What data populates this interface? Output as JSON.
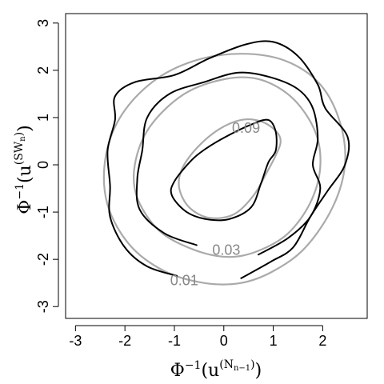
{
  "chart_data": {
    "type": "contour",
    "title": "",
    "xlabel": {
      "base": "Φ",
      "exp": "−1",
      "open": "(u",
      "sup_main": "(N",
      "sub": "n−1",
      "sup_close": ")",
      "close": ")"
    },
    "ylabel": {
      "base": "Φ",
      "exp": "−1",
      "open": "(u",
      "sup_main": "(SW",
      "sub": "n",
      "sup_close": ")",
      "close": ")"
    },
    "xlim": [
      -3.2,
      2.9
    ],
    "ylim": [
      -3.25,
      3.2
    ],
    "x_ticks": [
      -3,
      -2,
      -1,
      0,
      1,
      2
    ],
    "x_tick_labels": [
      "-3",
      "-2",
      "-1",
      "0",
      "1",
      "2"
    ],
    "y_ticks": [
      -3,
      -2,
      -1,
      0,
      1,
      2,
      3
    ],
    "y_tick_labels": [
      "-3",
      "-2",
      "-1",
      "0",
      "1",
      "2",
      "3"
    ],
    "grid": false,
    "colors": {
      "empirical": "#000000",
      "model": "#aaaaaa",
      "label": "#888888",
      "frame": "#000000"
    },
    "series": [
      {
        "group": "empirical",
        "level": 0.09,
        "points": [
          [
            1.05,
            0.7
          ],
          [
            0.9,
            0.95
          ],
          [
            0.55,
            0.85
          ],
          [
            0.05,
            0.6
          ],
          [
            -0.35,
            0.35
          ],
          [
            -0.65,
            0.1
          ],
          [
            -1.0,
            -0.35
          ],
          [
            -1.05,
            -0.65
          ],
          [
            -0.75,
            -1.0
          ],
          [
            -0.35,
            -1.15
          ],
          [
            0.1,
            -1.15
          ],
          [
            0.55,
            -0.9
          ],
          [
            0.75,
            -0.4
          ],
          [
            0.9,
            0.05
          ],
          [
            1.05,
            0.3
          ],
          [
            1.05,
            0.7
          ]
        ]
      },
      {
        "group": "empirical",
        "level": 0.03,
        "label_at": [
          0.05,
          -1.8
        ],
        "points": [
          [
            -0.55,
            -1.7
          ],
          [
            -1.2,
            -1.45
          ],
          [
            -1.7,
            -0.95
          ],
          [
            -1.75,
            -0.3
          ],
          [
            -1.65,
            0.3
          ],
          [
            -1.55,
            1.0
          ],
          [
            -1.1,
            1.5
          ],
          [
            -0.4,
            1.75
          ],
          [
            0.3,
            1.95
          ],
          [
            0.95,
            1.85
          ],
          [
            1.5,
            1.6
          ],
          [
            1.8,
            1.2
          ],
          [
            1.9,
            0.55
          ],
          [
            1.8,
            0.0
          ],
          [
            1.95,
            -0.5
          ],
          [
            1.75,
            -1.1
          ],
          [
            1.3,
            -1.55
          ],
          [
            0.7,
            -1.9
          ]
        ]
      },
      {
        "group": "empirical",
        "level": 0.01,
        "label_at": [
          -0.8,
          -2.45
        ],
        "points": [
          [
            -0.95,
            -2.35
          ],
          [
            -1.55,
            -2.15
          ],
          [
            -2.0,
            -1.75
          ],
          [
            -2.3,
            -1.1
          ],
          [
            -2.3,
            -0.45
          ],
          [
            -2.35,
            0.3
          ],
          [
            -2.2,
            0.95
          ],
          [
            -2.2,
            1.45
          ],
          [
            -1.8,
            1.75
          ],
          [
            -1.0,
            1.9
          ],
          [
            -0.3,
            2.25
          ],
          [
            0.45,
            2.55
          ],
          [
            1.0,
            2.6
          ],
          [
            1.5,
            2.3
          ],
          [
            1.9,
            1.7
          ],
          [
            2.05,
            1.2
          ],
          [
            2.5,
            0.6
          ],
          [
            2.45,
            0.0
          ],
          [
            2.1,
            -0.55
          ],
          [
            1.75,
            -1.1
          ],
          [
            1.4,
            -1.75
          ],
          [
            0.95,
            -2.05
          ],
          [
            0.35,
            -2.4
          ]
        ]
      },
      {
        "group": "model",
        "level": 0.09,
        "label_at": [
          0.45,
          0.78
        ],
        "points": [
          [
            1.05,
            0.72
          ],
          [
            0.75,
            0.92
          ],
          [
            0.35,
            0.95
          ],
          [
            -0.1,
            0.75
          ],
          [
            -0.55,
            0.35
          ],
          [
            -0.85,
            -0.1
          ],
          [
            -0.9,
            -0.5
          ],
          [
            -0.7,
            -0.9
          ],
          [
            -0.3,
            -1.12
          ],
          [
            0.2,
            -1.05
          ],
          [
            0.6,
            -0.65
          ],
          [
            0.85,
            -0.2
          ],
          [
            1.05,
            0.2
          ],
          [
            1.15,
            0.5
          ],
          [
            1.05,
            0.72
          ]
        ]
      },
      {
        "group": "model",
        "level": 0.03,
        "points": [
          [
            0.7,
            -1.82
          ],
          [
            0.1,
            -1.95
          ],
          [
            -0.6,
            -1.8
          ],
          [
            -1.3,
            -1.4
          ],
          [
            -1.75,
            -0.7
          ],
          [
            -1.8,
            0.0
          ],
          [
            -1.5,
            0.8
          ],
          [
            -0.8,
            1.5
          ],
          [
            0.05,
            1.82
          ],
          [
            0.75,
            1.8
          ],
          [
            1.4,
            1.4
          ],
          [
            1.85,
            0.7
          ],
          [
            1.95,
            -0.05
          ],
          [
            1.75,
            -0.8
          ],
          [
            1.3,
            -1.45
          ],
          [
            0.7,
            -1.82
          ]
        ]
      },
      {
        "group": "model",
        "level": 0.01,
        "points": [
          [
            0.35,
            -2.5
          ],
          [
            -0.4,
            -2.5
          ],
          [
            -1.2,
            -2.25
          ],
          [
            -1.9,
            -1.7
          ],
          [
            -2.35,
            -0.85
          ],
          [
            -2.4,
            0.1
          ],
          [
            -2.1,
            1.0
          ],
          [
            -1.45,
            1.75
          ],
          [
            -0.6,
            2.2
          ],
          [
            0.35,
            2.35
          ],
          [
            1.25,
            2.2
          ],
          [
            1.95,
            1.7
          ],
          [
            2.35,
            0.9
          ],
          [
            2.45,
            0.0
          ],
          [
            2.2,
            -0.9
          ],
          [
            1.65,
            -1.75
          ],
          [
            1.0,
            -2.25
          ],
          [
            0.35,
            -2.5
          ]
        ]
      }
    ]
  }
}
